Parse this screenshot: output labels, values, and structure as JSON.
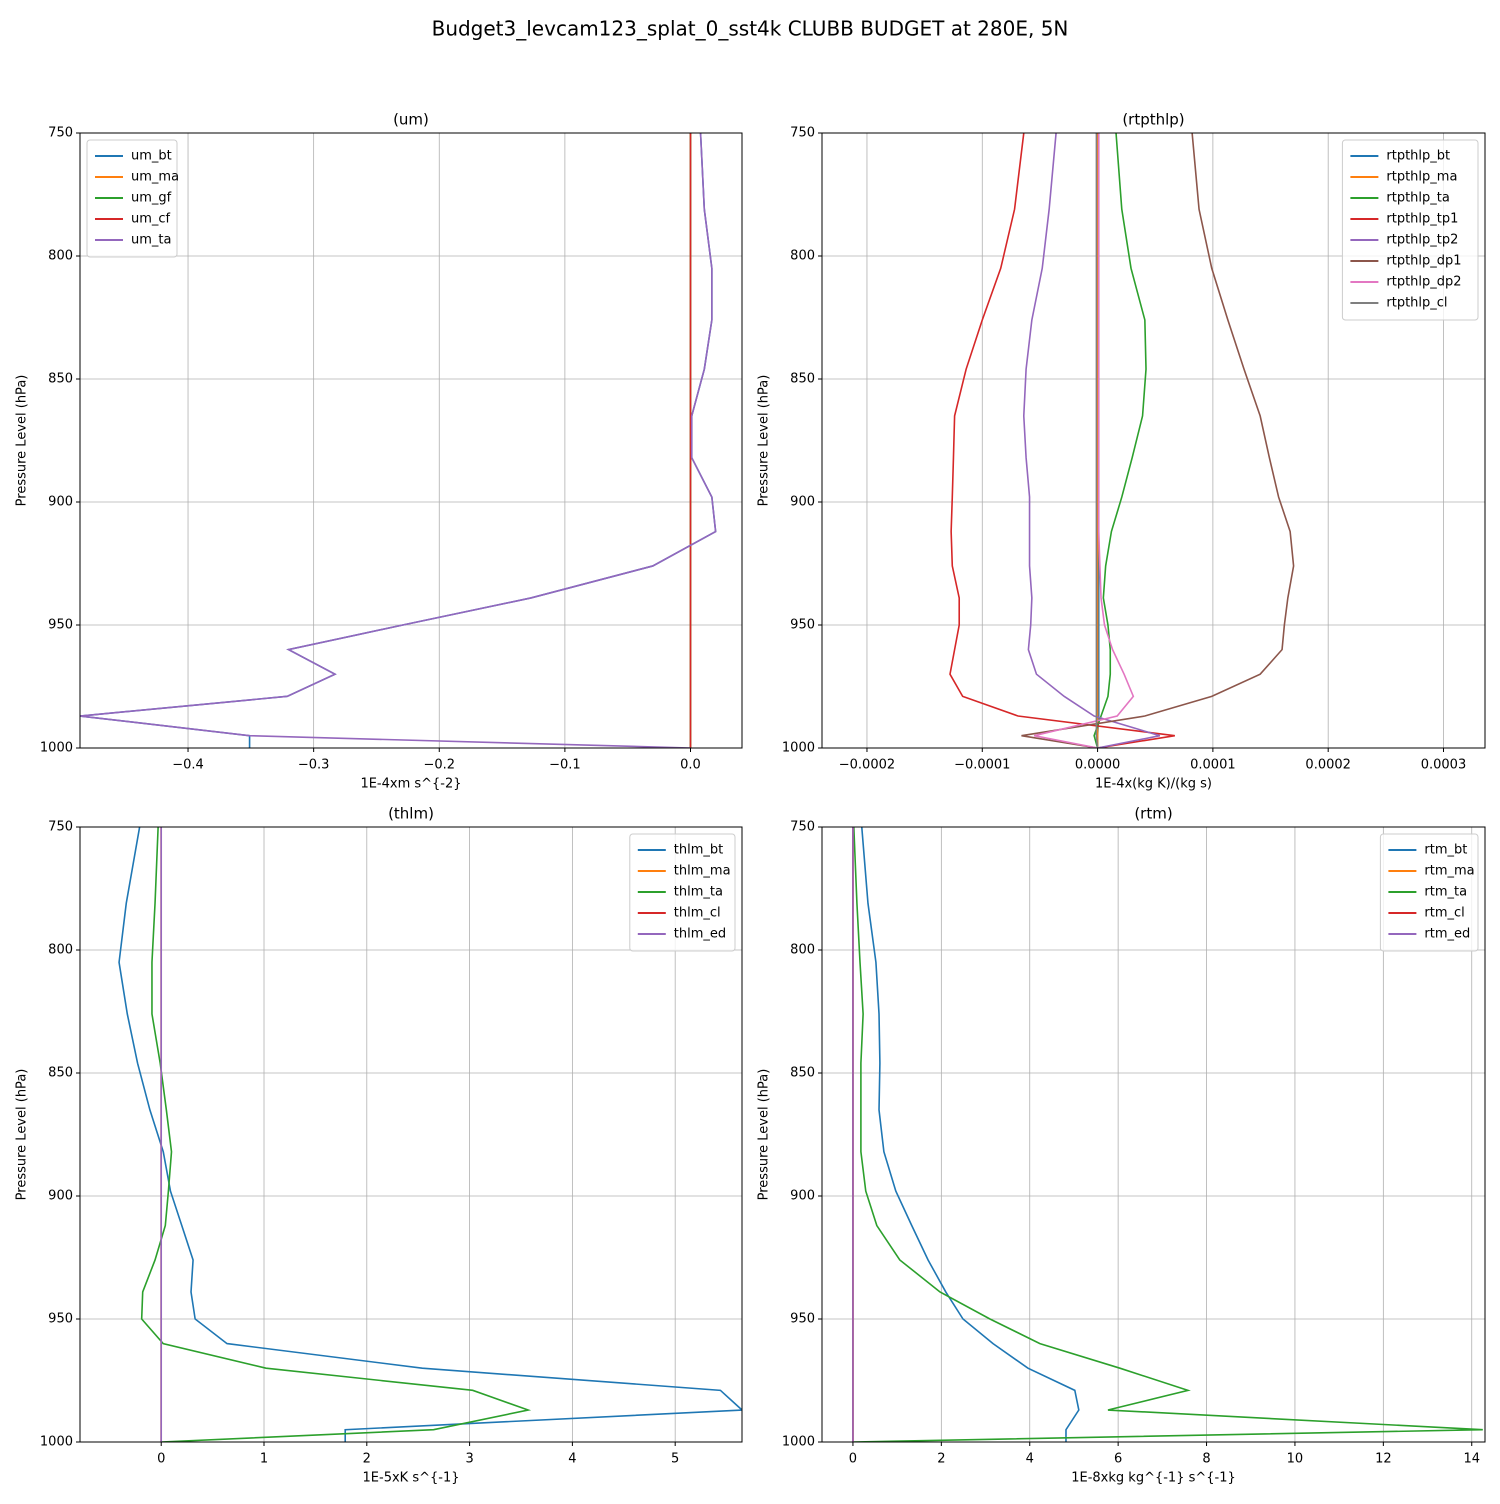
{
  "title": "Budget3_levcam123_splat_0_sst4k CLUBB BUDGET at 280E, 5N",
  "chart_data": [
    {
      "type": "line",
      "title": "(um)",
      "xlabel": "1E-4xm s^{-2}",
      "ylabel": "Pressure Level (hPa)",
      "xlim": [
        -0.486,
        0.041
      ],
      "ylim": [
        1000,
        750
      ],
      "xticks": [
        {
          "value": -0.4,
          "label": "−0.4"
        },
        {
          "value": -0.3,
          "label": "−0.3"
        },
        {
          "value": -0.2,
          "label": "−0.2"
        },
        {
          "value": -0.1,
          "label": "−0.1"
        },
        {
          "value": 0,
          "label": "0.0"
        }
      ],
      "yticks": [
        750,
        800,
        850,
        900,
        950,
        1000
      ],
      "grid": true,
      "legend": "upper left",
      "y": [
        750,
        781,
        805,
        826,
        846,
        865,
        882,
        898,
        912,
        926,
        939,
        950,
        960,
        970,
        979,
        987,
        995,
        1000
      ],
      "series": [
        {
          "name": "um_bt",
          "color": "#1f77b4",
          "values": [
            0.008,
            0.011,
            0.017,
            0.017,
            0.011,
            0.001,
            0.001,
            0.017,
            0.02,
            -0.03,
            -0.127,
            -0.229,
            -0.32,
            -0.283,
            -0.321,
            -0.486,
            -0.351,
            -0.351
          ]
        },
        {
          "name": "um_ma",
          "color": "#ff7f0e",
          "values": [
            0,
            0,
            0,
            0,
            0,
            0,
            0,
            0,
            0,
            0,
            0,
            0,
            0,
            0,
            0,
            0,
            0,
            0
          ]
        },
        {
          "name": "um_gf",
          "color": "#2ca02c",
          "values": [
            0,
            0,
            0,
            0,
            0,
            0,
            0,
            0,
            0,
            0,
            0,
            0,
            0,
            0,
            0,
            0,
            0,
            0
          ]
        },
        {
          "name": "um_cf",
          "color": "#d62728",
          "values": [
            0,
            0,
            0,
            0,
            0,
            0,
            0,
            0,
            0,
            0,
            0,
            0,
            0,
            0,
            0,
            0,
            0,
            0
          ]
        },
        {
          "name": "um_ta",
          "color": "#9467bd",
          "values": [
            0.008,
            0.011,
            0.017,
            0.017,
            0.011,
            0.001,
            0.001,
            0.017,
            0.02,
            -0.03,
            -0.127,
            -0.229,
            -0.32,
            -0.283,
            -0.321,
            -0.486,
            -0.351,
            0
          ]
        }
      ]
    },
    {
      "type": "line",
      "title": "(rtpthlp)",
      "xlabel": "1E-4x(kg K)/(kg s)",
      "ylabel": "Pressure Level (hPa)",
      "xlim": [
        -0.000239,
        0.000336
      ],
      "ylim": [
        1000,
        750
      ],
      "xticks": [
        {
          "value": -0.0002,
          "label": "−0.0002"
        },
        {
          "value": -0.0001,
          "label": "−0.0001"
        },
        {
          "value": 0,
          "label": "0.0000"
        },
        {
          "value": 0.0001,
          "label": "0.0001"
        },
        {
          "value": 0.0002,
          "label": "0.0002"
        },
        {
          "value": 0.0003,
          "label": "0.0003"
        }
      ],
      "yticks": [
        750,
        800,
        850,
        900,
        950,
        1000
      ],
      "grid": true,
      "legend": "upper right",
      "y": [
        750,
        781,
        805,
        826,
        846,
        865,
        882,
        898,
        912,
        926,
        939,
        950,
        960,
        970,
        979,
        987,
        995,
        1000
      ],
      "series": [
        {
          "name": "rtpthlp_bt",
          "color": "#1f77b4",
          "values": [
            1e-06,
            1e-06,
            1e-06,
            1e-06,
            1e-06,
            1e-06,
            1e-06,
            1e-06,
            1e-06,
            1e-06,
            1e-06,
            1e-06,
            1e-06,
            1e-06,
            1e-06,
            1e-06,
            0,
            0
          ]
        },
        {
          "name": "rtpthlp_ma",
          "color": "#ff7f0e",
          "values": [
            0,
            0,
            0,
            0,
            0,
            0,
            0,
            0,
            0,
            0,
            0,
            0,
            0,
            0,
            0,
            0,
            0,
            0
          ]
        },
        {
          "name": "rtpthlp_ta",
          "color": "#2ca02c",
          "values": [
            1.6e-05,
            2.1e-05,
            2.9e-05,
            4.1e-05,
            4.2e-05,
            3.9e-05,
            3e-05,
            2.1e-05,
            1.2e-05,
            7e-06,
            5e-06,
            9e-06,
            1.1e-05,
            1.1e-05,
            9e-06,
            3e-06,
            -3e-06,
            0
          ]
        },
        {
          "name": "rtpthlp_tp1",
          "color": "#d62728",
          "values": [
            -6.4e-05,
            -7.2e-05,
            -8.4e-05,
            -0.0001,
            -0.000114,
            -0.000124,
            -0.000125,
            -0.000126,
            -0.000127,
            -0.000126,
            -0.00012,
            -0.00012,
            -0.000124,
            -0.000128,
            -0.000117,
            -6.9e-05,
            6.7e-05,
            0
          ]
        },
        {
          "name": "rtpthlp_tp2",
          "color": "#9467bd",
          "values": [
            -3.6e-05,
            -4.2e-05,
            -4.8e-05,
            -5.7e-05,
            -6.2e-05,
            -6.4e-05,
            -6.2e-05,
            -5.9e-05,
            -5.9e-05,
            -5.9e-05,
            -5.7e-05,
            -5.8e-05,
            -6e-05,
            -5.3e-05,
            -2.9e-05,
            -3e-06,
            5.4e-05,
            0
          ]
        },
        {
          "name": "rtpthlp_dp1",
          "color": "#8c564b",
          "values": [
            8.2e-05,
            8.8e-05,
            9.9e-05,
            0.000113,
            0.000127,
            0.000141,
            0.000149,
            0.000157,
            0.000167,
            0.00017,
            0.000165,
            0.000162,
            0.00016,
            0.000141,
            9.9e-05,
            4.1e-05,
            -6.6e-05,
            0
          ]
        },
        {
          "name": "rtpthlp_dp2",
          "color": "#e377c2",
          "values": [
            1e-06,
            1e-06,
            1e-06,
            1e-06,
            1e-06,
            1e-06,
            1e-06,
            1e-06,
            1e-06,
            2e-06,
            3e-06,
            6e-06,
            1.3e-05,
            2.3e-05,
            3.1e-05,
            1.7e-05,
            -5.5e-05,
            0
          ]
        },
        {
          "name": "rtpthlp_cl",
          "color": "#7f7f7f",
          "values": [
            -1e-06,
            -1e-06,
            -1e-06,
            -1e-06,
            -1e-06,
            -1e-06,
            -1e-06,
            -1e-06,
            -1e-06,
            -1e-06,
            -1e-06,
            -1e-06,
            -1e-06,
            -1e-06,
            -1e-06,
            -1e-06,
            -1e-06,
            0
          ]
        }
      ]
    },
    {
      "type": "line",
      "title": "(thlm)",
      "xlabel": "1E-5xK s^{-1}",
      "ylabel": "Pressure Level (hPa)",
      "xlim": [
        -0.79,
        5.65
      ],
      "ylim": [
        1000,
        750
      ],
      "xticks": [
        0,
        1,
        2,
        3,
        4,
        5
      ],
      "yticks": [
        750,
        800,
        850,
        900,
        950,
        1000
      ],
      "grid": true,
      "legend": "upper right",
      "y": [
        750,
        781,
        805,
        826,
        846,
        865,
        882,
        898,
        912,
        926,
        939,
        950,
        960,
        970,
        979,
        987,
        995,
        1000
      ],
      "series": [
        {
          "name": "thlm_bt",
          "color": "#1f77b4",
          "values": [
            -0.21,
            -0.34,
            -0.41,
            -0.33,
            -0.23,
            -0.11,
            0.02,
            0.09,
            0.2,
            0.31,
            0.29,
            0.33,
            0.64,
            2.54,
            5.44,
            5.65,
            1.79,
            1.79
          ]
        },
        {
          "name": "thlm_ma",
          "color": "#ff7f0e",
          "values": [
            0,
            0,
            0,
            0,
            0,
            0,
            0,
            0,
            0,
            0,
            0,
            0,
            0,
            0,
            0,
            0,
            0,
            0
          ]
        },
        {
          "name": "thlm_ta",
          "color": "#2ca02c",
          "values": [
            -0.03,
            -0.06,
            -0.09,
            -0.09,
            -0.01,
            0.05,
            0.1,
            0.07,
            0.04,
            -0.06,
            -0.18,
            -0.19,
            0.02,
            1.02,
            3.03,
            3.57,
            2.65,
            0
          ]
        },
        {
          "name": "thlm_cl",
          "color": "#d62728",
          "values": [
            0,
            0,
            0,
            0,
            0,
            0,
            0,
            0,
            0,
            0,
            0,
            0,
            0,
            0,
            0,
            0,
            0,
            0
          ]
        },
        {
          "name": "thlm_ed",
          "color": "#9467bd",
          "values": [
            0,
            0,
            0,
            0,
            0,
            0,
            0,
            0,
            0,
            0,
            0,
            0,
            0,
            0,
            0,
            0,
            0,
            0
          ]
        }
      ]
    },
    {
      "type": "line",
      "title": "(rtm)",
      "xlabel": "1E-8xkg kg^{-1} s^{-1}",
      "ylabel": "Pressure Level (hPa)",
      "xlim": [
        -0.7,
        14.3
      ],
      "ylim": [
        1000,
        750
      ],
      "xticks": [
        0,
        2,
        4,
        6,
        8,
        10,
        12,
        14
      ],
      "yticks": [
        750,
        800,
        850,
        900,
        950,
        1000
      ],
      "grid": true,
      "legend": "upper right",
      "y": [
        750,
        781,
        805,
        826,
        846,
        865,
        882,
        898,
        912,
        926,
        939,
        950,
        960,
        970,
        979,
        987,
        995,
        1000
      ],
      "series": [
        {
          "name": "rtm_bt",
          "color": "#1f77b4",
          "values": [
            0.2,
            0.34,
            0.52,
            0.59,
            0.61,
            0.59,
            0.7,
            0.97,
            1.33,
            1.7,
            2.1,
            2.49,
            3.17,
            3.96,
            5.02,
            5.11,
            4.82,
            4.82
          ]
        },
        {
          "name": "rtm_ma",
          "color": "#ff7f0e",
          "values": [
            0,
            0,
            0,
            0,
            0,
            0,
            0,
            0,
            0,
            0,
            0,
            0,
            0,
            0,
            0,
            0,
            0,
            0
          ]
        },
        {
          "name": "rtm_ta",
          "color": "#2ca02c",
          "values": [
            0.02,
            0.09,
            0.16,
            0.23,
            0.18,
            0.18,
            0.18,
            0.29,
            0.54,
            1.06,
            1.97,
            3.1,
            4.23,
            6.04,
            7.58,
            5.77,
            14.25,
            0
          ]
        },
        {
          "name": "rtm_cl",
          "color": "#d62728",
          "values": [
            0,
            0,
            0,
            0,
            0,
            0,
            0,
            0,
            0,
            0,
            0,
            0,
            0,
            0,
            0,
            0,
            0,
            0
          ]
        },
        {
          "name": "rtm_ed",
          "color": "#9467bd",
          "values": [
            0,
            0,
            0,
            0,
            0,
            0,
            0,
            0,
            0,
            0,
            0,
            0,
            0,
            0,
            0,
            0,
            0,
            0
          ]
        }
      ]
    }
  ]
}
